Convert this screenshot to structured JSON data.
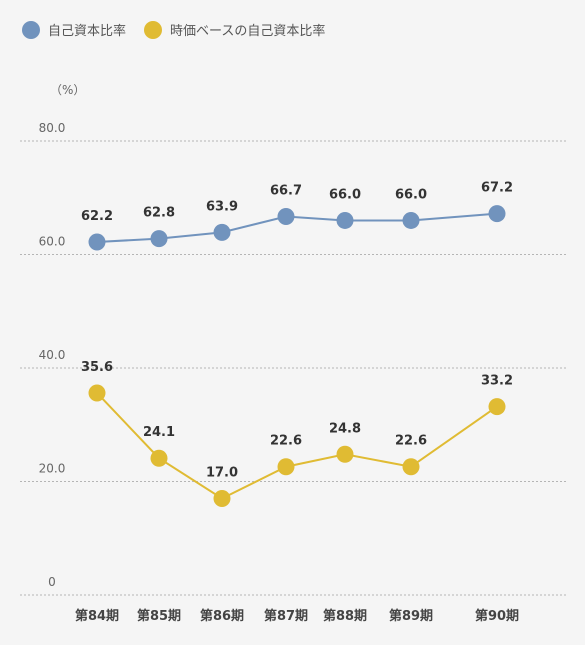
{
  "chart_data": {
    "type": "line",
    "unit": "（%）",
    "categories": [
      "第84期",
      "第85期",
      "第86期",
      "第87期",
      "第88期",
      "第89期",
      "第90期"
    ],
    "y_ticks": [
      "80.0",
      "60.0",
      "40.0",
      "20.0",
      "0"
    ],
    "ylim": [
      0,
      80
    ],
    "grid": true,
    "legend_position": "top-left",
    "series": [
      {
        "name": "自己資本比率",
        "color": "#7193bd",
        "values": [
          62.2,
          62.8,
          63.9,
          66.7,
          66.0,
          66.0,
          67.2
        ],
        "labels": [
          "62.2",
          "62.8",
          "63.9",
          "66.7",
          "66.0",
          "66.0",
          "67.2"
        ]
      },
      {
        "name": "時価ベースの自己資本比率",
        "color": "#e0bb33",
        "values": [
          35.6,
          24.1,
          17.0,
          22.6,
          24.8,
          22.6,
          33.2
        ],
        "labels": [
          "35.6",
          "24.1",
          "17.0",
          "22.6",
          "24.8",
          "22.6",
          "33.2"
        ]
      }
    ]
  }
}
